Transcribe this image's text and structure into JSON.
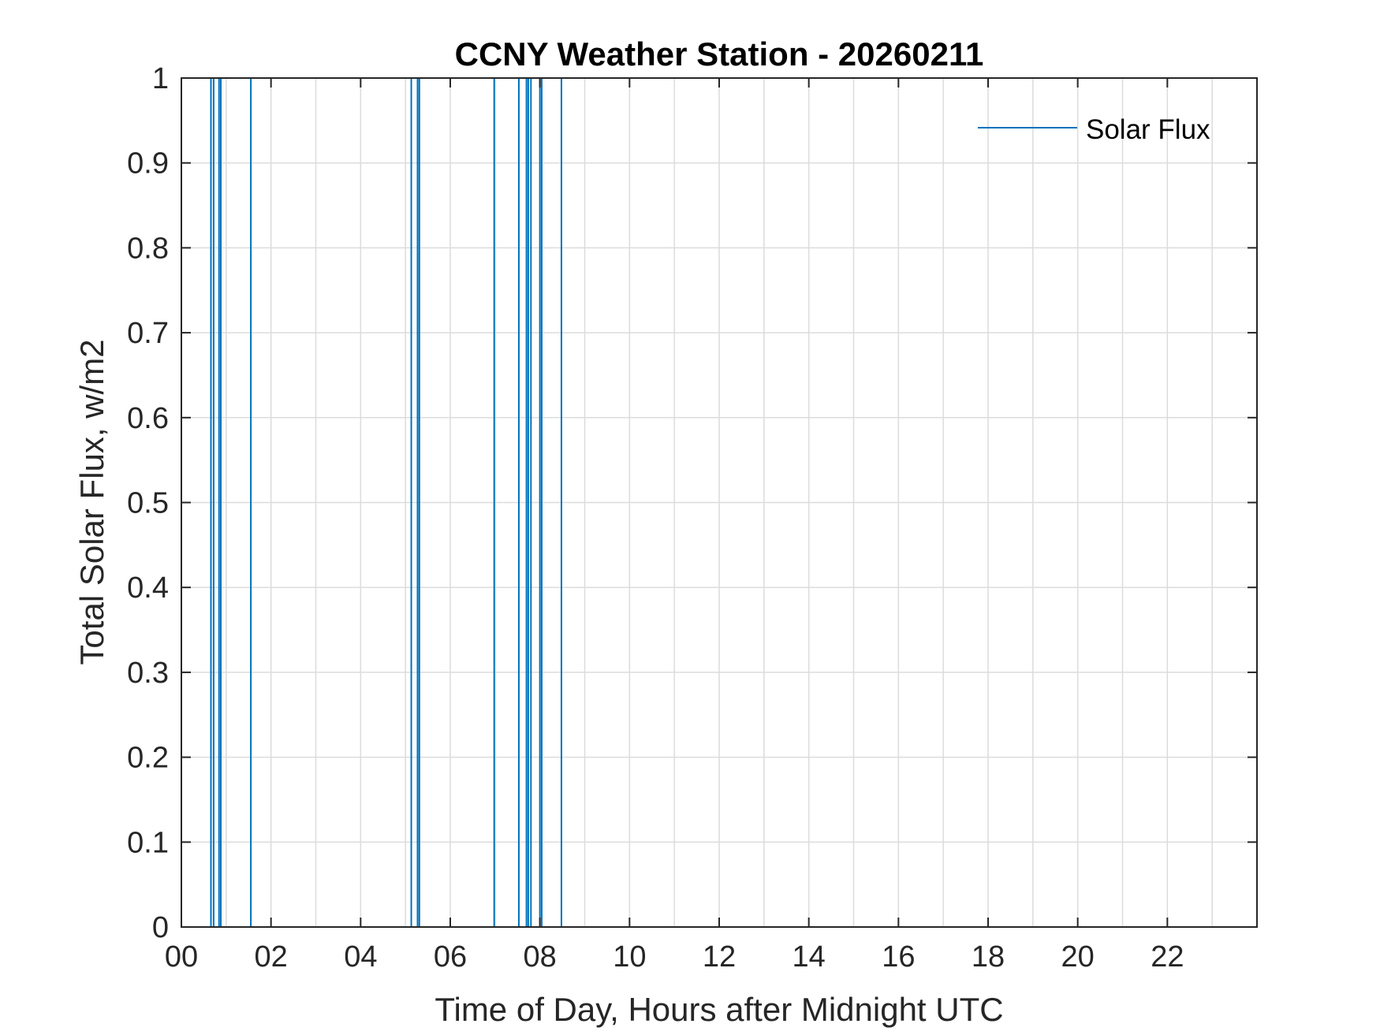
{
  "chart_data": {
    "type": "line",
    "title": "CCNY Weather Station - 20260211",
    "xlabel": "Time of Day, Hours after Midnight UTC",
    "ylabel": "Total Solar Flux, w/m2",
    "xlim": [
      0,
      24
    ],
    "ylim": [
      0,
      1
    ],
    "x_ticks": [
      0,
      2,
      4,
      6,
      8,
      10,
      12,
      14,
      16,
      18,
      20,
      22
    ],
    "x_tick_labels": [
      "00",
      "02",
      "04",
      "06",
      "08",
      "10",
      "12",
      "14",
      "16",
      "18",
      "20",
      "22"
    ],
    "x_minor_grid_step": 1,
    "y_ticks": [
      0,
      0.1,
      0.2,
      0.3,
      0.4,
      0.5,
      0.6,
      0.7,
      0.8,
      0.9,
      1
    ],
    "y_tick_labels": [
      "0",
      "0.1",
      "0.2",
      "0.3",
      "0.4",
      "0.5",
      "0.6",
      "0.7",
      "0.8",
      "0.9",
      "1"
    ],
    "grid": true,
    "legend": {
      "position": "top-right",
      "entries": [
        "Solar Flux"
      ]
    },
    "series": [
      {
        "name": "Solar Flux",
        "color": "#0072BD",
        "spikes": [
          {
            "x": 0.66,
            "y": 1
          },
          {
            "x": 0.72,
            "y": 1
          },
          {
            "x": 0.84,
            "y": 1
          },
          {
            "x": 0.88,
            "y": 1
          },
          {
            "x": 1.55,
            "y": 1
          },
          {
            "x": 5.13,
            "y": 1
          },
          {
            "x": 5.27,
            "y": 1
          },
          {
            "x": 5.31,
            "y": 1
          },
          {
            "x": 6.98,
            "y": 1
          },
          {
            "x": 7.53,
            "y": 1
          },
          {
            "x": 7.7,
            "y": 1
          },
          {
            "x": 7.74,
            "y": 1
          },
          {
            "x": 7.8,
            "y": 1
          },
          {
            "x": 8.0,
            "y": 1
          },
          {
            "x": 8.04,
            "y": 1
          },
          {
            "x": 8.48,
            "y": 1
          }
        ]
      }
    ]
  }
}
